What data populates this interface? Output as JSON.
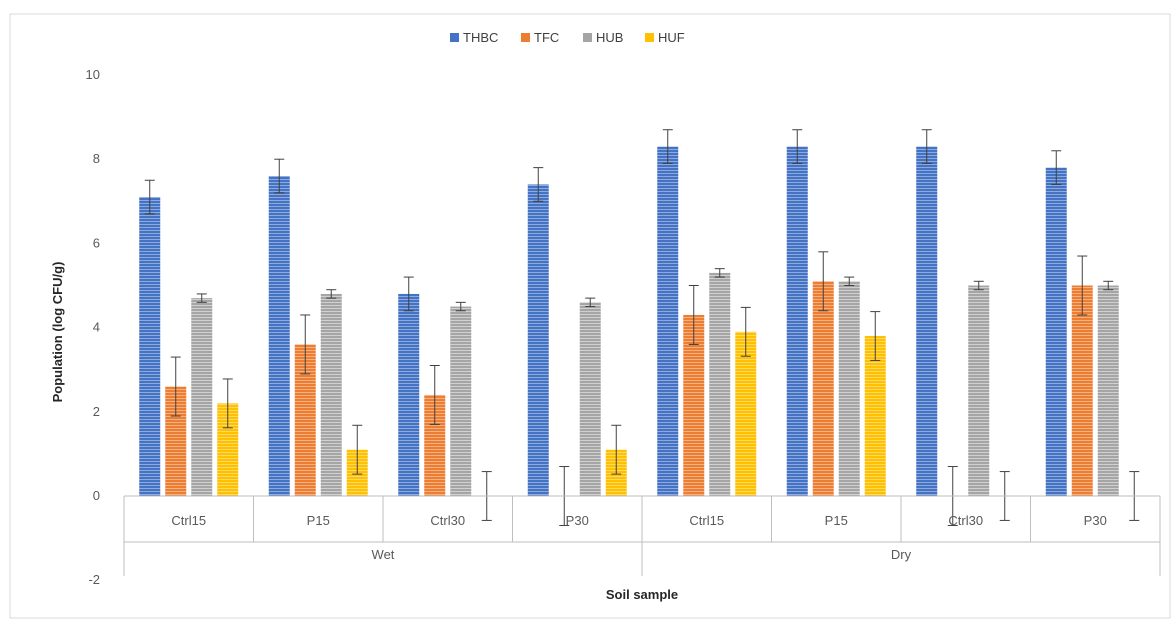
{
  "chart_data": {
    "type": "bar",
    "title": "",
    "xlabel": "Soil sample",
    "ylabel": "Population (log CFU/g)",
    "ylim": [
      -2,
      10
    ],
    "yticks": [
      -2,
      0,
      2,
      4,
      6,
      8,
      10
    ],
    "grid": false,
    "legend_position": "top",
    "groups": [
      {
        "label": "Wet",
        "categories": [
          "Ctrl15",
          "P15",
          "Ctrl30",
          "P30"
        ]
      },
      {
        "label": "Dry",
        "categories": [
          "Ctrl15",
          "P15",
          "Ctrl30",
          "P30"
        ]
      }
    ],
    "categories": [
      "Ctrl15",
      "P15",
      "Ctrl30",
      "P30",
      "Ctrl15",
      "P15",
      "Ctrl30",
      "P30"
    ],
    "series": [
      {
        "name": "THBC",
        "color": "#4472C4",
        "values": [
          7.1,
          7.6,
          4.8,
          7.4,
          8.3,
          8.3,
          8.3,
          7.8
        ],
        "errors": [
          0.4,
          0.4,
          0.4,
          0.4,
          0.4,
          0.4,
          0.4,
          0.4
        ]
      },
      {
        "name": "TFC",
        "color": "#ED7D31",
        "values": [
          2.6,
          3.6,
          2.4,
          0,
          4.3,
          5.1,
          0,
          5.0
        ],
        "errors": [
          0.7,
          0.7,
          0.7,
          0.7,
          0.7,
          0.7,
          0.7,
          0.7
        ]
      },
      {
        "name": "HUB",
        "color": "#A5A5A5",
        "values": [
          4.7,
          4.8,
          4.5,
          4.6,
          5.3,
          5.1,
          5.0,
          5.0
        ],
        "errors": [
          0.1,
          0.1,
          0.1,
          0.1,
          0.1,
          0.1,
          0.1,
          0.1
        ]
      },
      {
        "name": "HUF",
        "color": "#FFC000",
        "values": [
          2.2,
          1.1,
          0,
          1.1,
          3.9,
          3.8,
          0,
          0
        ],
        "errors": [
          0.58,
          0.58,
          0.58,
          0.58,
          0.58,
          0.58,
          0.58,
          0.58
        ]
      }
    ]
  }
}
